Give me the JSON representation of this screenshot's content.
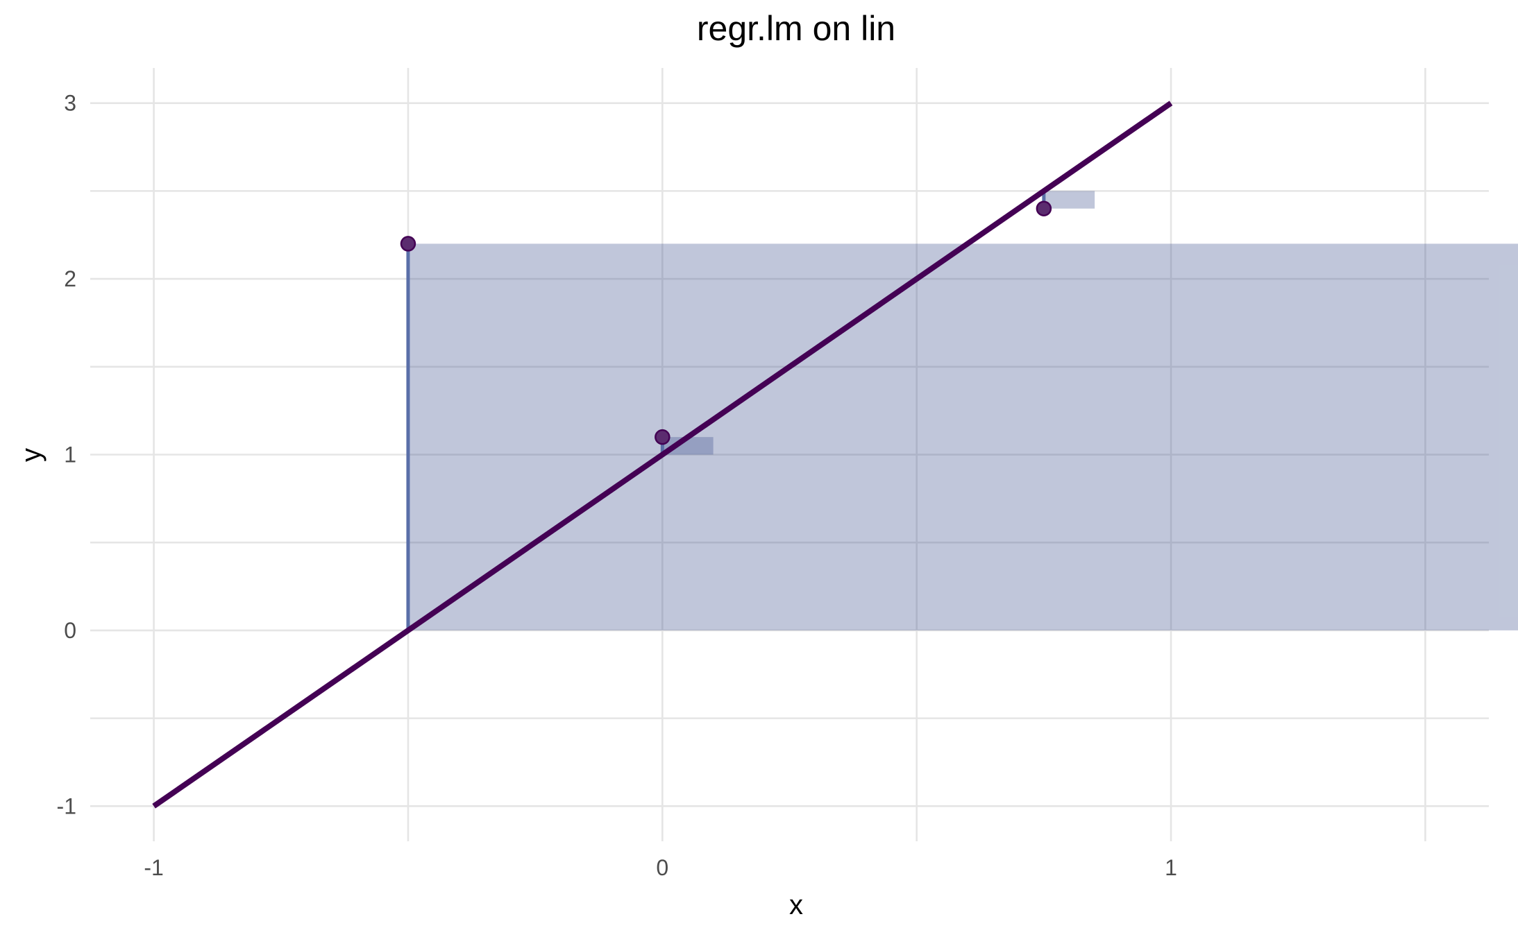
{
  "chart_data": {
    "type": "line",
    "title": "regr.lm on lin",
    "xlabel": "x",
    "ylabel": "y",
    "xlim": [
      -1.125,
      1.625
    ],
    "ylim": [
      -1.2,
      3.2
    ],
    "x_ticks": [
      {
        "value": -1,
        "label": "-1"
      },
      {
        "value": 0,
        "label": "0"
      },
      {
        "value": 1,
        "label": "1"
      }
    ],
    "x_minor_ticks": [
      -0.5,
      0.5,
      1.5
    ],
    "y_ticks": [
      {
        "value": -1,
        "label": "-1"
      },
      {
        "value": 0,
        "label": "0"
      },
      {
        "value": 1,
        "label": "1"
      },
      {
        "value": 2,
        "label": "2"
      },
      {
        "value": 3,
        "label": "3"
      }
    ],
    "y_minor_ticks": [
      -0.5,
      0.5,
      1.5,
      2.5
    ],
    "grid": true,
    "fit_line": {
      "x": [
        -1,
        1
      ],
      "y": [
        -1,
        3
      ],
      "color": "#440154"
    },
    "points": [
      {
        "x": -0.5,
        "y": 2.2
      },
      {
        "x": 0.0,
        "y": 1.1
      },
      {
        "x": 0.75,
        "y": 2.4
      }
    ],
    "residual_squares": [
      {
        "x0": -0.5,
        "x1": 1.7,
        "y0": 0.0,
        "y1": 2.2
      },
      {
        "x0": 0.0,
        "x1": 0.1,
        "y0": 1.0,
        "y1": 1.1
      },
      {
        "x0": 0.75,
        "x1": 0.85,
        "y0": 2.4,
        "y1": 2.5
      }
    ],
    "residual_segments": [
      {
        "x": -0.5,
        "y0": 0.0,
        "y1": 2.2
      },
      {
        "x": 0.0,
        "y0": 1.0,
        "y1": 1.1
      },
      {
        "x": 0.75,
        "y0": 2.4,
        "y1": 2.5
      }
    ],
    "colors": {
      "line": "#440154",
      "point": "#5b2c6f",
      "square_fill": "#3b4f8c",
      "segment": "#5a6fa8",
      "grid": "#e5e5e5"
    }
  }
}
